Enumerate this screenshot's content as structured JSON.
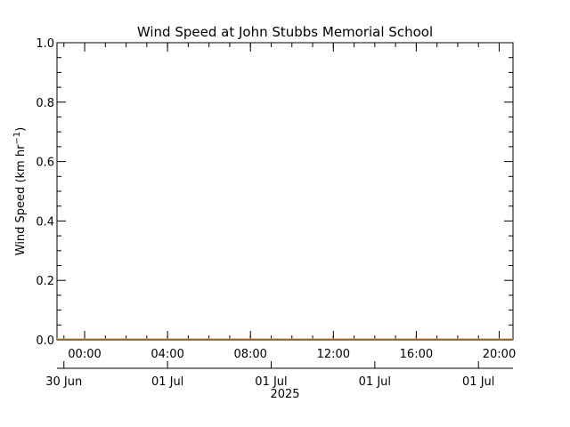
{
  "chart_data": {
    "type": "line",
    "title": "Wind Speed at John Stubbs Memorial School",
    "ylabel_main": "Wind Speed (km hr",
    "ylabel_exp": "−1",
    "ylabel_close": ")",
    "ylim": [
      0.0,
      1.0
    ],
    "y_ticks": [
      "0.0",
      "0.2",
      "0.4",
      "0.6",
      "0.8",
      "1.0"
    ],
    "y_minor_per_major": 4,
    "x_range": [
      "2025-06-30T22:40",
      "2025-07-01T20:40"
    ],
    "time_ticks": [
      {
        "t": "2025-07-01T00:00",
        "label": "00:00"
      },
      {
        "t": "2025-07-01T04:00",
        "label": "04:00"
      },
      {
        "t": "2025-07-01T08:00",
        "label": "08:00"
      },
      {
        "t": "2025-07-01T12:00",
        "label": "12:00"
      },
      {
        "t": "2025-07-01T16:00",
        "label": "16:00"
      },
      {
        "t": "2025-07-01T20:00",
        "label": "20:00"
      }
    ],
    "date_ticks": [
      {
        "t": "2025-06-30T23:00",
        "label": "30 Jun"
      },
      {
        "t": "2025-07-01T04:00",
        "label": "01 Jul"
      },
      {
        "t": "2025-07-01T09:00",
        "label": "01 Jul"
      },
      {
        "t": "2025-07-01T14:00",
        "label": "01 Jul"
      },
      {
        "t": "2025-07-01T19:00",
        "label": "01 Jul"
      }
    ],
    "year_label": "2025",
    "series": [
      {
        "color": "#e8a33d",
        "x": [
          "2025-06-30T22:40",
          "2025-07-01T20:40"
        ],
        "y": [
          0.0,
          0.0
        ]
      }
    ]
  }
}
